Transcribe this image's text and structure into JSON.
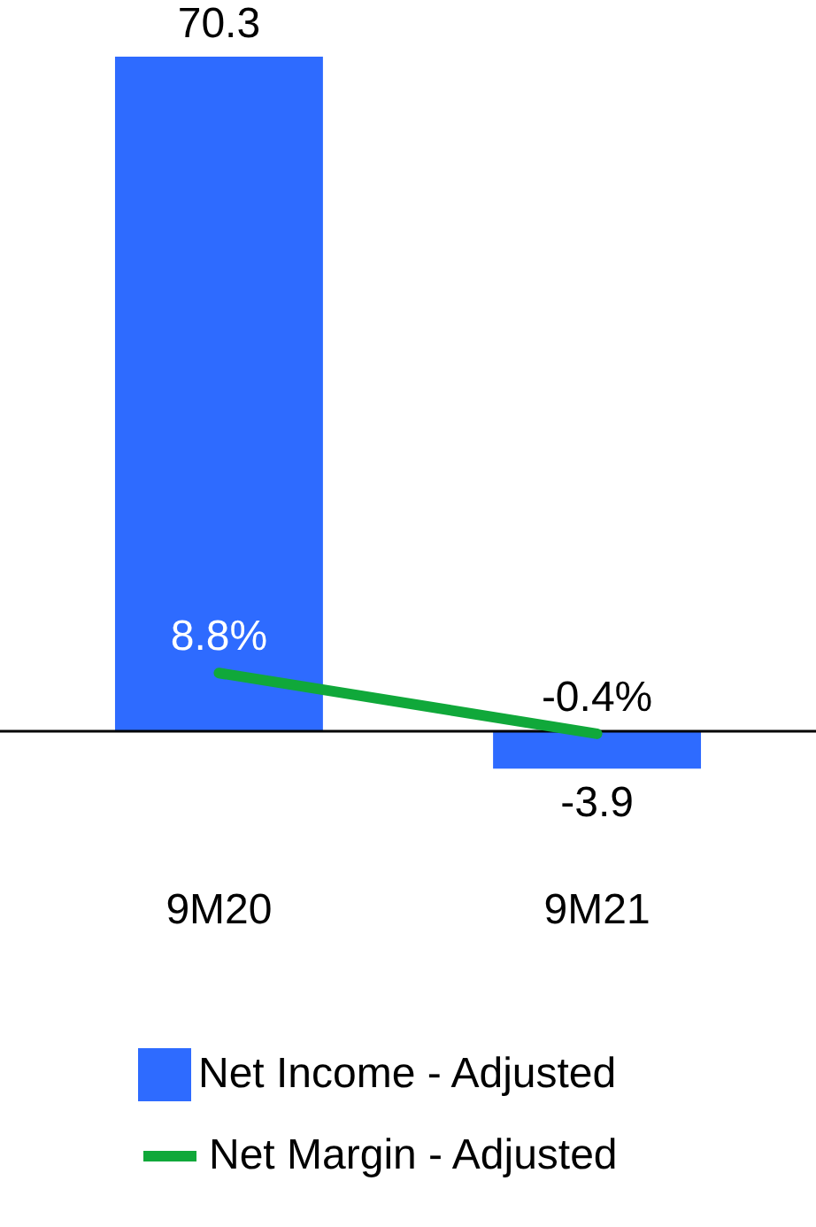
{
  "chart_data": {
    "type": "bar",
    "categories": [
      "9M20",
      "9M21"
    ],
    "series": [
      {
        "name": "Net Income - Adjusted",
        "color": "#2e6bff",
        "values": [
          70.3,
          -3.9
        ],
        "value_labels": [
          "70.3",
          "-3.9"
        ]
      },
      {
        "name": "Net Margin - Adjusted",
        "type": "line",
        "axis": "y2",
        "color": "#10a83a",
        "values": [
          8.8,
          -0.4
        ],
        "value_labels": [
          "8.8%",
          "-0.4%"
        ]
      }
    ],
    "legend": "bottom"
  }
}
